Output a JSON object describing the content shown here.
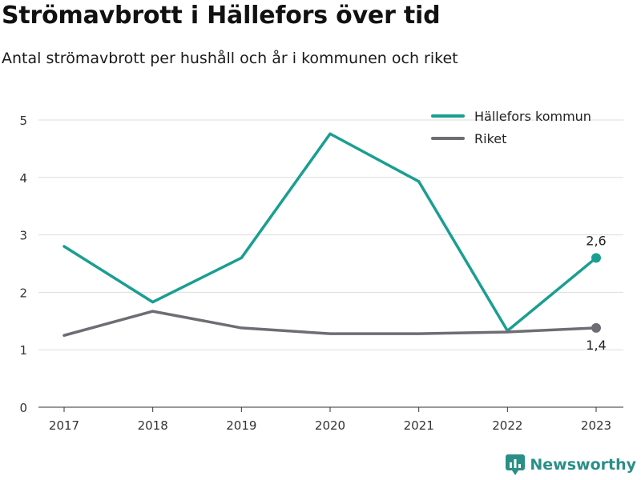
{
  "chart_data": {
    "type": "line",
    "title": "Strömavbrott i Hällefors över tid",
    "subtitle": "Antal strömavbrott per hushåll och år i kommunen och riket",
    "x": [
      "2017",
      "2018",
      "2019",
      "2020",
      "2021",
      "2022",
      "2023"
    ],
    "ylim": [
      0,
      5
    ],
    "yticks": [
      "0",
      "1",
      "2",
      "3",
      "4",
      "5"
    ],
    "grid": true,
    "legend_position": "top-right",
    "series": [
      {
        "name": "Hällefors kommun",
        "color": "#1a9e92",
        "values": [
          2.8,
          1.83,
          2.6,
          4.76,
          3.93,
          1.33,
          2.6
        ],
        "end_label": "2,6"
      },
      {
        "name": "Riket",
        "color": "#6e6d73",
        "values": [
          1.25,
          1.67,
          1.38,
          1.28,
          1.28,
          1.31,
          1.38
        ],
        "end_label": "1,4"
      }
    ]
  },
  "brand": {
    "name": "Newsworthy",
    "icon": "newsworthy-logo-icon",
    "color": "#2a8f87"
  }
}
